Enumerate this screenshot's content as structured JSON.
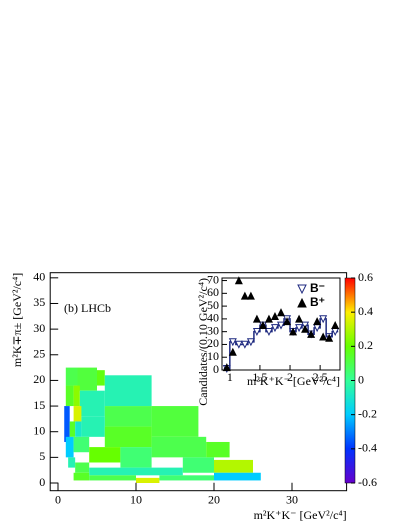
{
  "chart_data": [
    {
      "type": "heatmap2d",
      "label": "(b) LHCb",
      "xlabel": "m²K⁺K⁻ [GeV²/c⁴]",
      "ylabel": "m²K∓π± [GeV²/c⁴]",
      "xlim": [
        -1,
        37
      ],
      "ylim": [
        -1.5,
        41
      ],
      "xticks": [
        0,
        10,
        20,
        30
      ],
      "yticks": [
        0,
        5,
        10,
        15,
        20,
        25,
        30,
        35,
        40
      ],
      "zlim": [
        -0.6,
        0.6
      ],
      "zticks": [
        -0.6,
        -0.4,
        -0.2,
        0,
        0.2,
        0.4,
        0.6
      ],
      "palette": [
        "#6600cc",
        "#0033ff",
        "#00ccff",
        "#33ff99",
        "#66ff00",
        "#ffee00",
        "#ff0000"
      ],
      "cells": [
        {
          "x": [
            1,
            2.5
          ],
          "y": [
            19,
            22.5
          ],
          "value": 0.1
        },
        {
          "x": [
            2.5,
            5
          ],
          "y": [
            18,
            22.5
          ],
          "value": 0.12
        },
        {
          "x": [
            5,
            6
          ],
          "y": [
            19,
            22
          ],
          "value": 0.18
        },
        {
          "x": [
            6,
            12
          ],
          "y": [
            15,
            21
          ],
          "value": -0.05
        },
        {
          "x": [
            1,
            2
          ],
          "y": [
            15,
            19
          ],
          "value": 0.15
        },
        {
          "x": [
            2,
            2.8
          ],
          "y": [
            15,
            19
          ],
          "value": 0.25
        },
        {
          "x": [
            2.8,
            6
          ],
          "y": [
            13,
            18
          ],
          "value": -0.05
        },
        {
          "x": [
            2,
            3
          ],
          "y": [
            12,
            15
          ],
          "value": 0.35
        },
        {
          "x": [
            6,
            12
          ],
          "y": [
            11,
            15
          ],
          "value": 0.1
        },
        {
          "x": [
            12,
            18
          ],
          "y": [
            9,
            15
          ],
          "value": 0.12
        },
        {
          "x": [
            0.8,
            1.5
          ],
          "y": [
            8,
            15
          ],
          "value": -0.35
        },
        {
          "x": [
            1.5,
            2.2
          ],
          "y": [
            9,
            12
          ],
          "value": 0.15
        },
        {
          "x": [
            2.2,
            3
          ],
          "y": [
            9,
            12
          ],
          "value": -0.1
        },
        {
          "x": [
            3,
            6
          ],
          "y": [
            9,
            13
          ],
          "value": -0.05
        },
        {
          "x": [
            6,
            12
          ],
          "y": [
            7,
            11
          ],
          "value": 0.15
        },
        {
          "x": [
            12,
            19
          ],
          "y": [
            5,
            9
          ],
          "value": 0.1
        },
        {
          "x": [
            19,
            22
          ],
          "y": [
            5,
            8
          ],
          "value": 0.15
        },
        {
          "x": [
            1,
            2
          ],
          "y": [
            5,
            9
          ],
          "value": -0.2
        },
        {
          "x": [
            2,
            4
          ],
          "y": [
            6,
            9
          ],
          "value": 0.05
        },
        {
          "x": [
            4,
            8
          ],
          "y": [
            4,
            7
          ],
          "value": 0.2
        },
        {
          "x": [
            8,
            12
          ],
          "y": [
            3,
            7
          ],
          "value": 0.05
        },
        {
          "x": [
            1.3,
            2.2
          ],
          "y": [
            3,
            5
          ],
          "value": -0.05
        },
        {
          "x": [
            2.2,
            4
          ],
          "y": [
            2,
            4
          ],
          "value": 0.1
        },
        {
          "x": [
            4,
            16
          ],
          "y": [
            1.5,
            3
          ],
          "value": -0.05
        },
        {
          "x": [
            16,
            20
          ],
          "y": [
            2,
            5
          ],
          "value": 0.05
        },
        {
          "x": [
            20,
            25
          ],
          "y": [
            2,
            4.5
          ],
          "value": 0.3
        },
        {
          "x": [
            2,
            4
          ],
          "y": [
            0.5,
            2
          ],
          "value": 0.15
        },
        {
          "x": [
            4,
            10
          ],
          "y": [
            0.5,
            1.5
          ],
          "value": 0.1
        },
        {
          "x": [
            10,
            13
          ],
          "y": [
            0,
            1
          ],
          "value": 0.35
        },
        {
          "x": [
            13,
            20
          ],
          "y": [
            0.5,
            1.5
          ],
          "value": 0.05
        },
        {
          "x": [
            20,
            26
          ],
          "y": [
            0.5,
            2
          ],
          "value": -0.2
        }
      ]
    },
    {
      "type": "histogram",
      "xlabel": "m²K⁺K⁻ [GeV²/c⁴]",
      "ylabel": "Candidates/(0.10 GeV²/c⁴)",
      "xlim": [
        0.87,
        2.83
      ],
      "ylim": [
        0,
        72
      ],
      "xticks": [
        1,
        1.5,
        2,
        2.5
      ],
      "yticks": [
        0,
        10,
        20,
        30,
        40,
        50,
        60,
        70
      ],
      "x": [
        0.95,
        1.05,
        1.15,
        1.25,
        1.35,
        1.45,
        1.55,
        1.65,
        1.75,
        1.85,
        1.95,
        2.05,
        2.15,
        2.25,
        2.35,
        2.45,
        2.55,
        2.65,
        2.75
      ],
      "series": [
        {
          "name": "B⁻",
          "color": "#1f2a80",
          "values": [
            1,
            22,
            20,
            20,
            22,
            30,
            35,
            30,
            33,
            35,
            40,
            30,
            33,
            35,
            28,
            33,
            40,
            26,
            30
          ]
        },
        {
          "name": "B⁺",
          "color": "#000000",
          "values": [
            2,
            14,
            70,
            58,
            58,
            40,
            35,
            40,
            42,
            45,
            38,
            30,
            40,
            32,
            28,
            38,
            26,
            25,
            35
          ]
        }
      ]
    }
  ]
}
